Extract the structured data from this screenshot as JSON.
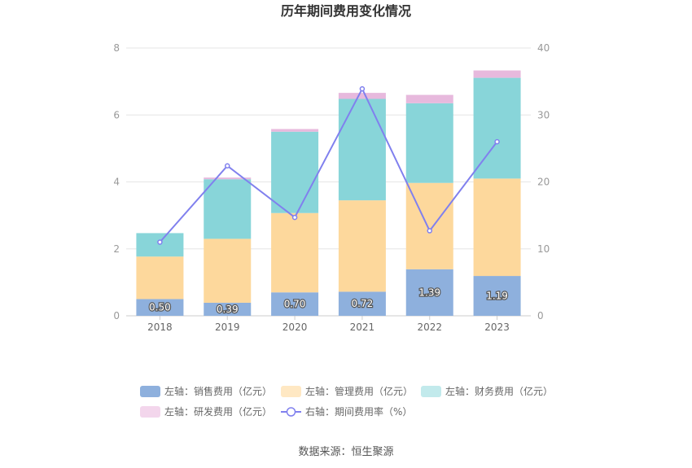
{
  "chart_data": {
    "type": "bar",
    "title": "历年期间费用变化情况",
    "categories": [
      "2018",
      "2019",
      "2020",
      "2021",
      "2022",
      "2023"
    ],
    "series": [
      {
        "name": "左轴：销售费用（亿元）",
        "axis": "left",
        "type": "bar",
        "color": "#8eb0dd",
        "values": [
          0.5,
          0.39,
          0.7,
          0.72,
          1.39,
          1.19
        ],
        "labels": [
          "0.50",
          "0.39",
          "0.70",
          "0.72",
          "1.39",
          "1.19"
        ]
      },
      {
        "name": "左轴：管理费用（亿元）",
        "axis": "left",
        "type": "bar",
        "color": "#fdd89c",
        "values": [
          1.27,
          1.91,
          2.37,
          2.73,
          2.58,
          2.91
        ]
      },
      {
        "name": "左轴：财务费用（亿元）",
        "axis": "left",
        "type": "bar",
        "color": "#88d5d9",
        "values": [
          0.7,
          1.78,
          2.43,
          3.03,
          2.38,
          3.01
        ]
      },
      {
        "name": "左轴：研发费用（亿元）",
        "axis": "left",
        "type": "bar",
        "color": "#e7b9dd",
        "values": [
          0.0,
          0.05,
          0.08,
          0.18,
          0.25,
          0.22
        ]
      },
      {
        "name": "右轴：期间费用率（%）",
        "axis": "right",
        "type": "line",
        "color": "#8080ee",
        "values": [
          11.0,
          22.4,
          14.7,
          33.9,
          12.7,
          26.0
        ]
      }
    ],
    "ylim_left": [
      0,
      8
    ],
    "yticks_left": [
      "0",
      "2",
      "4",
      "6",
      "8"
    ],
    "ylim_right": [
      0,
      40
    ],
    "yticks_right": [
      "0",
      "10",
      "20",
      "30",
      "40"
    ],
    "grid": true,
    "legend": "bottom",
    "legend_colors": [
      "#8eb0dd",
      "#ffe8c3",
      "#c2eaec",
      "#f3d6ec",
      "#8080ee"
    ],
    "source": "数据来源：恒生聚源"
  }
}
